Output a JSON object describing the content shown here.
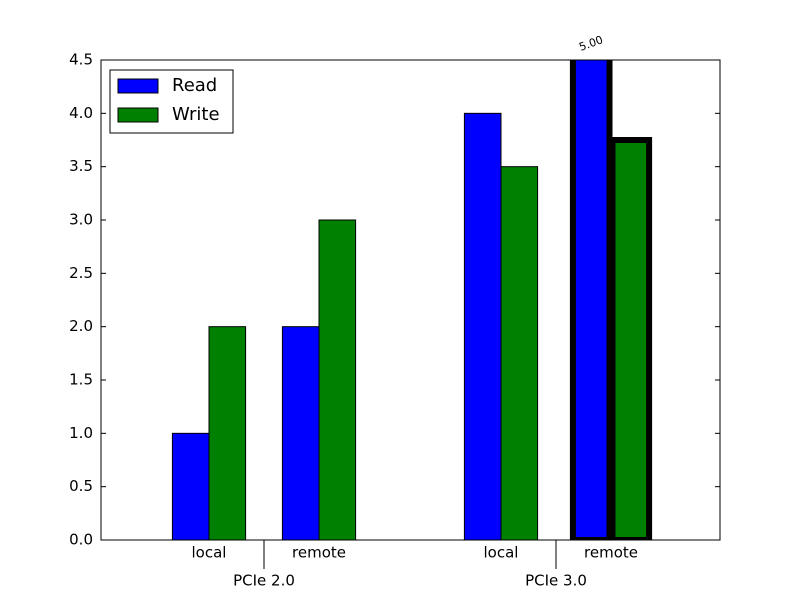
{
  "chart_data": {
    "type": "bar",
    "groups": [
      "PCIe 2.0",
      "PCIe 3.0"
    ],
    "categories": [
      "local",
      "remote",
      "local",
      "remote"
    ],
    "series": [
      {
        "name": "Read",
        "color": "#0000ff",
        "values": [
          1.0,
          2.0,
          4.0,
          5.0
        ],
        "value_labels": [
          null,
          null,
          null,
          "5.00"
        ]
      },
      {
        "name": "Write",
        "color": "#008000",
        "values": [
          2.0,
          3.0,
          3.5,
          3.75
        ]
      }
    ],
    "highlighted": [
      3
    ],
    "ylim": [
      0,
      4.5
    ],
    "yticks": [
      {
        "value": 0,
        "label": "0.0"
      },
      {
        "value": 0.5,
        "label": "0.5"
      },
      {
        "value": 1,
        "label": "1.0"
      },
      {
        "value": 1.5,
        "label": "1.5"
      },
      {
        "value": 2,
        "label": "2.0"
      },
      {
        "value": 2.5,
        "label": "2.5"
      },
      {
        "value": 3,
        "label": "3.0"
      },
      {
        "value": 3.5,
        "label": "3.5"
      },
      {
        "value": 4,
        "label": "4.0"
      },
      {
        "value": 4.5,
        "label": "4.5"
      }
    ],
    "legend": "upper left"
  }
}
